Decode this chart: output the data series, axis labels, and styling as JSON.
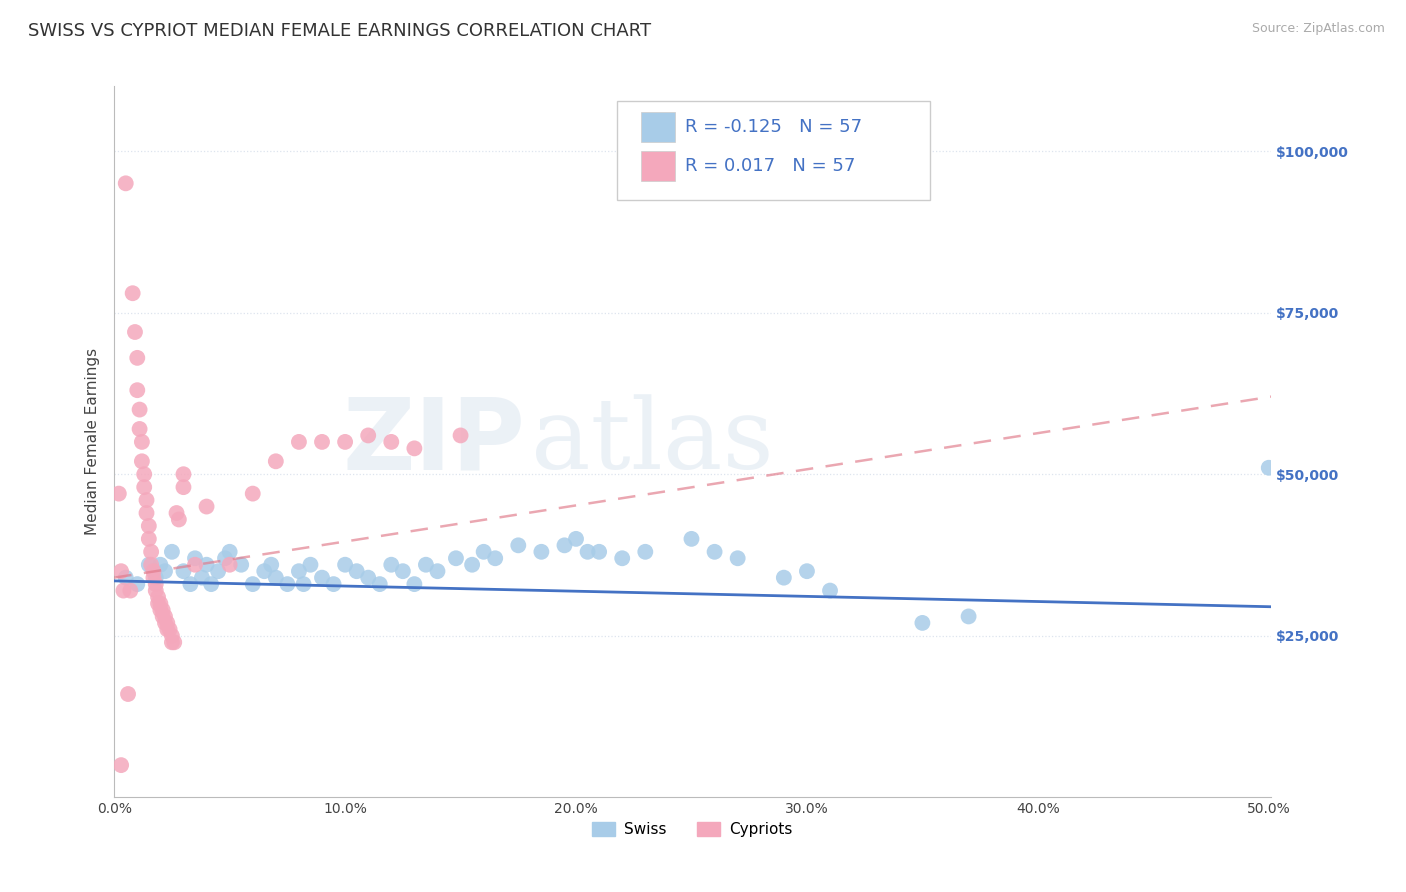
{
  "title": "SWISS VS CYPRIOT MEDIAN FEMALE EARNINGS CORRELATION CHART",
  "source": "Source: ZipAtlas.com",
  "ylabel": "Median Female Earnings",
  "xlim": [
    0.0,
    0.501
  ],
  "ylim": [
    0,
    110000
  ],
  "ytick_labels": [
    "$25,000",
    "$50,000",
    "$75,000",
    "$100,000"
  ],
  "ytick_values": [
    25000,
    50000,
    75000,
    100000
  ],
  "xtick_labels": [
    "0.0%",
    "10.0%",
    "20.0%",
    "30.0%",
    "40.0%",
    "50.0%"
  ],
  "xtick_values": [
    0.0,
    0.1,
    0.2,
    0.3,
    0.4,
    0.5
  ],
  "swiss_color": "#a8cce8",
  "cypriot_color": "#f4a8bc",
  "swiss_line_color": "#4472c4",
  "cypriot_line_color": "#e07888",
  "background_color": "#ffffff",
  "grid_color": "#dde4ee",
  "legend_R_swiss": "-0.125",
  "legend_R_cypriot": "0.017",
  "legend_N": "57",
  "swiss_line_x0": 0.0,
  "swiss_line_y0": 33500,
  "swiss_line_x1": 0.501,
  "swiss_line_y1": 29500,
  "cypriot_line_x0": 0.0,
  "cypriot_line_y0": 34000,
  "cypriot_line_x1": 0.501,
  "cypriot_line_y1": 62000,
  "swiss_scatter_x": [
    0.005,
    0.01,
    0.015,
    0.018,
    0.02,
    0.022,
    0.025,
    0.03,
    0.033,
    0.035,
    0.038,
    0.04,
    0.042,
    0.045,
    0.048,
    0.05,
    0.055,
    0.06,
    0.065,
    0.068,
    0.07,
    0.075,
    0.08,
    0.082,
    0.085,
    0.09,
    0.095,
    0.1,
    0.105,
    0.11,
    0.115,
    0.12,
    0.125,
    0.13,
    0.135,
    0.14,
    0.148,
    0.155,
    0.16,
    0.165,
    0.175,
    0.185,
    0.195,
    0.2,
    0.205,
    0.21,
    0.22,
    0.23,
    0.25,
    0.26,
    0.27,
    0.29,
    0.3,
    0.31,
    0.35,
    0.37,
    0.5
  ],
  "swiss_scatter_y": [
    34000,
    33000,
    36000,
    34000,
    36000,
    35000,
    38000,
    35000,
    33000,
    37000,
    34000,
    36000,
    33000,
    35000,
    37000,
    38000,
    36000,
    33000,
    35000,
    36000,
    34000,
    33000,
    35000,
    33000,
    36000,
    34000,
    33000,
    36000,
    35000,
    34000,
    33000,
    36000,
    35000,
    33000,
    36000,
    35000,
    37000,
    36000,
    38000,
    37000,
    39000,
    38000,
    39000,
    40000,
    38000,
    38000,
    37000,
    38000,
    40000,
    38000,
    37000,
    34000,
    35000,
    32000,
    27000,
    28000,
    51000
  ],
  "cypriot_scatter_x": [
    0.002,
    0.003,
    0.004,
    0.005,
    0.006,
    0.007,
    0.008,
    0.009,
    0.01,
    0.01,
    0.011,
    0.011,
    0.012,
    0.012,
    0.013,
    0.013,
    0.014,
    0.014,
    0.015,
    0.015,
    0.016,
    0.016,
    0.017,
    0.017,
    0.018,
    0.018,
    0.019,
    0.019,
    0.02,
    0.02,
    0.021,
    0.021,
    0.022,
    0.022,
    0.023,
    0.023,
    0.024,
    0.025,
    0.025,
    0.026,
    0.027,
    0.028,
    0.03,
    0.03,
    0.035,
    0.04,
    0.05,
    0.06,
    0.07,
    0.08,
    0.09,
    0.1,
    0.11,
    0.12,
    0.13,
    0.15,
    0.003
  ],
  "cypriot_scatter_y": [
    47000,
    35000,
    32000,
    95000,
    16000,
    32000,
    78000,
    72000,
    68000,
    63000,
    60000,
    57000,
    55000,
    52000,
    50000,
    48000,
    46000,
    44000,
    42000,
    40000,
    38000,
    36000,
    35000,
    34000,
    33000,
    32000,
    31000,
    30000,
    30000,
    29000,
    29000,
    28000,
    28000,
    27000,
    27000,
    26000,
    26000,
    25000,
    24000,
    24000,
    44000,
    43000,
    50000,
    48000,
    36000,
    45000,
    36000,
    47000,
    52000,
    55000,
    55000,
    55000,
    56000,
    55000,
    54000,
    56000,
    5000
  ],
  "watermark": "ZIPatlas",
  "title_fontsize": 13,
  "axis_label_fontsize": 11,
  "tick_fontsize": 10,
  "legend_fontsize": 13
}
